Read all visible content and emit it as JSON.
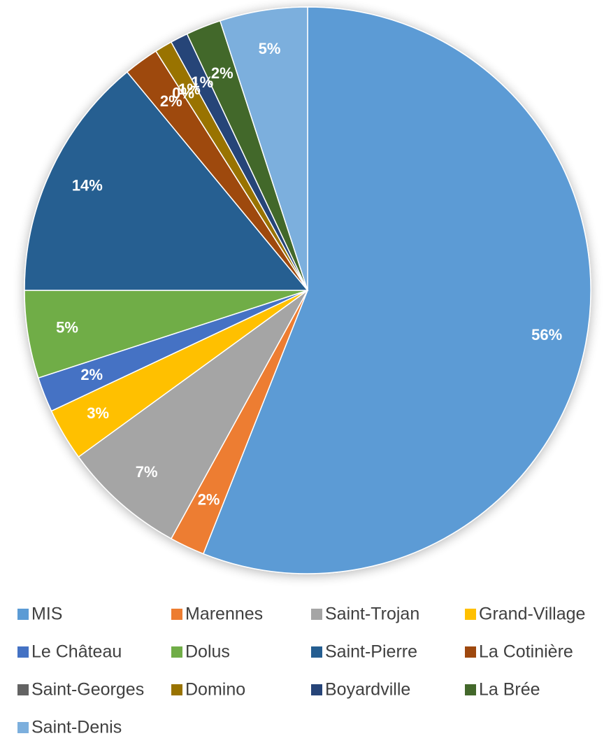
{
  "chart_data": {
    "type": "pie",
    "categories": [
      "MIS",
      "Marennes",
      "Saint-Trojan",
      "Grand-Village",
      "Le Château",
      "Dolus",
      "Saint-Pierre",
      "La Cotinière",
      "Saint-Georges",
      "Domino",
      "Boyardville",
      "La Brée",
      "Saint-Denis"
    ],
    "values": [
      56,
      2,
      7,
      3,
      2,
      5,
      14,
      2,
      0,
      1,
      1,
      2,
      5
    ],
    "value_labels": [
      "56%",
      "2%",
      "7%",
      "3%",
      "2%",
      "5%",
      "14%",
      "2%",
      "0%",
      "1%",
      "1%",
      "2%",
      "5%"
    ],
    "colors": [
      "#5b9bd5",
      "#ed7d31",
      "#a5a5a5",
      "#ffc000",
      "#4472c4",
      "#70ad47",
      "#255e91",
      "#9e480e",
      "#636363",
      "#997300",
      "#264478",
      "#43682b",
      "#7cafdd"
    ],
    "legend": "bottom"
  }
}
